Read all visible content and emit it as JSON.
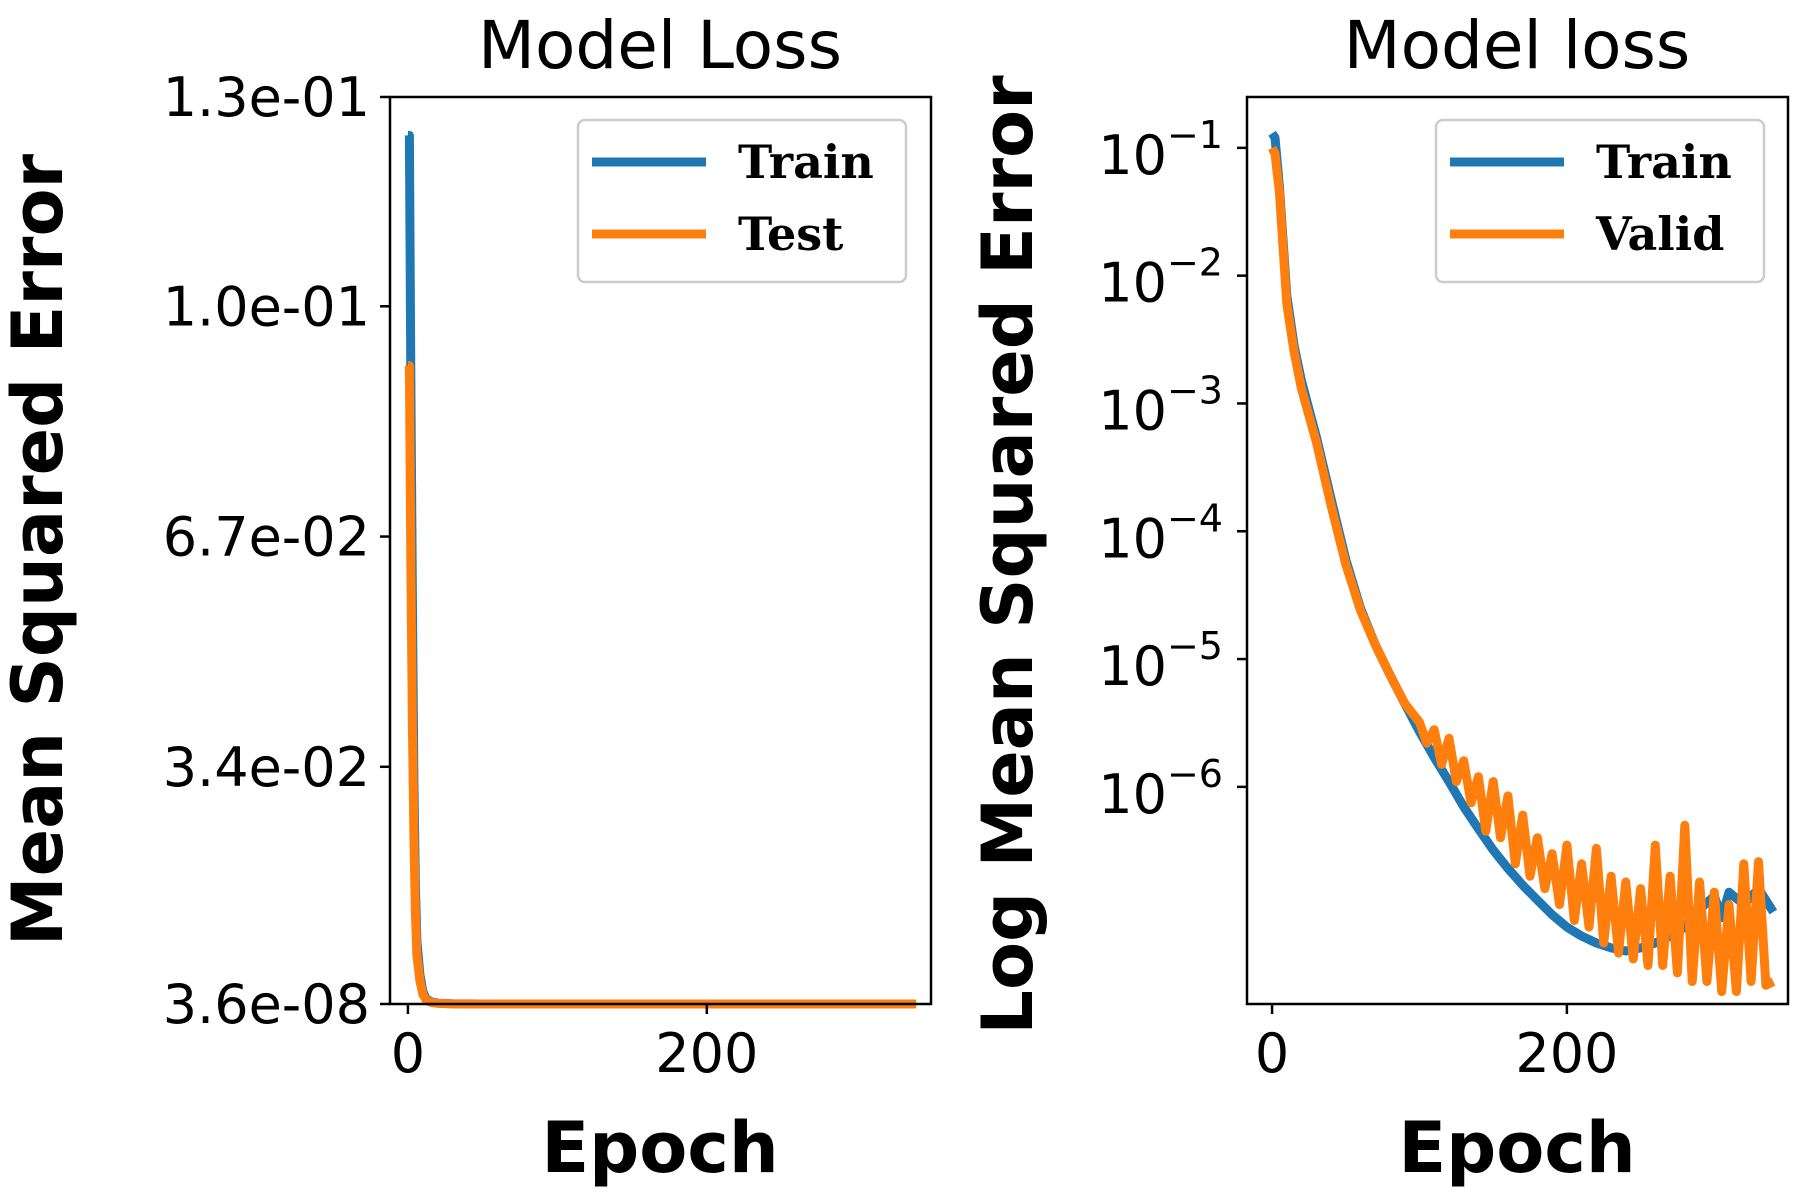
{
  "chart_data": [
    {
      "type": "line",
      "title": "Model Loss",
      "xlabel": "Epoch",
      "ylabel": "Mean Squared Error",
      "xlim": [
        -12,
        350
      ],
      "ylim": [
        3.6e-08,
        0.13
      ],
      "yscale": "linear",
      "xticks": [
        0,
        200
      ],
      "xtick_labels": [
        "0",
        "200"
      ],
      "yticks": [
        3.6e-08,
        0.034,
        0.067,
        0.1,
        0.13
      ],
      "ytick_labels": [
        "3.6e-08",
        "3.4e-02",
        "6.7e-02",
        "1.0e-01",
        "1.3e-01"
      ],
      "legend_position": "top-right",
      "grid": false,
      "series": [
        {
          "name": "Train",
          "color": "#1f77b4",
          "x": [
            0,
            1,
            2,
            3,
            4,
            5,
            6,
            8,
            10,
            12,
            15,
            20,
            30,
            50,
            100,
            200,
            340
          ],
          "y": [
            0.1245,
            0.1245,
            0.088,
            0.058,
            0.032,
            0.017,
            0.009,
            0.0042,
            0.0018,
            0.0008,
            0.00035,
            0.00012,
            3e-05,
            4e-06,
            8e-07,
            2e-07,
            8e-08
          ]
        },
        {
          "name": "Test",
          "color": "#ff7f0e",
          "x": [
            0,
            1,
            2,
            3,
            4,
            5,
            6,
            8,
            10,
            12,
            15,
            20,
            30,
            50,
            100,
            200,
            340
          ],
          "y": [
            0.0915,
            0.0915,
            0.062,
            0.04,
            0.024,
            0.013,
            0.007,
            0.0033,
            0.0014,
            0.0006,
            0.00025,
            9e-05,
            2e-05,
            3e-06,
            8e-07,
            2e-07,
            1e-07
          ]
        }
      ]
    },
    {
      "type": "line",
      "title": "Model loss",
      "xlabel": "Epoch",
      "ylabel": "Log Mean Squared Error",
      "xlim": [
        -17,
        350
      ],
      "ylim": [
        2e-08,
        0.25
      ],
      "yscale": "log",
      "xticks": [
        0,
        200
      ],
      "xtick_labels": [
        "0",
        "200"
      ],
      "yticks": [
        0.1,
        0.01,
        0.001,
        0.0001,
        1e-05,
        1e-06
      ],
      "ytick_base": [
        "10",
        "10",
        "10",
        "10",
        "10",
        "10"
      ],
      "ytick_exp": [
        "−1",
        "−2",
        "−3",
        "−4",
        "−5",
        "−6"
      ],
      "legend_position": "top-right",
      "grid": false,
      "series": [
        {
          "name": "Train",
          "color": "#1f77b4",
          "x": [
            0,
            2,
            5,
            10,
            15,
            20,
            30,
            40,
            50,
            60,
            70,
            80,
            90,
            100,
            110,
            120,
            130,
            140,
            150,
            160,
            170,
            180,
            190,
            200,
            210,
            220,
            230,
            240,
            250,
            260,
            270,
            280,
            290,
            300,
            305,
            310,
            320,
            330,
            340
          ],
          "y": [
            0.13,
            0.12,
            0.05,
            0.007,
            0.0028,
            0.0015,
            0.00055,
            0.00018,
            6e-05,
            2.5e-05,
            1.3e-05,
            7.5e-06,
            4.5e-06,
            2.7e-06,
            1.7e-06,
            1.1e-06,
            7e-07,
            4.7e-07,
            3.2e-07,
            2.3e-07,
            1.7e-07,
            1.3e-07,
            1e-07,
            8e-08,
            6.8e-08,
            6e-08,
            5.5e-08,
            5.2e-08,
            5.5e-08,
            6e-08,
            6.8e-08,
            8e-08,
            1.1e-07,
            1.4e-07,
            9.5e-08,
            1.5e-07,
            1.2e-07,
            1.6e-07,
            1.05e-07
          ]
        },
        {
          "name": "Valid",
          "color": "#ff7f0e",
          "x": [
            0,
            2,
            5,
            10,
            15,
            20,
            30,
            40,
            50,
            60,
            70,
            80,
            90,
            100,
            105,
            110,
            115,
            120,
            125,
            130,
            135,
            140,
            145,
            150,
            155,
            160,
            165,
            170,
            175,
            180,
            185,
            190,
            195,
            200,
            205,
            210,
            215,
            220,
            225,
            230,
            235,
            240,
            245,
            250,
            255,
            260,
            265,
            270,
            275,
            280,
            285,
            290,
            295,
            300,
            305,
            310,
            315,
            320,
            325,
            330,
            335,
            340
          ],
          "y": [
            0.1,
            0.09,
            0.045,
            0.006,
            0.0025,
            0.0013,
            0.0005,
            0.00016,
            5.5e-05,
            2.4e-05,
            1.3e-05,
            7.5e-06,
            4.5e-06,
            3.2e-06,
            2.2e-06,
            2.8e-06,
            1.5e-06,
            2.4e-06,
            1.1e-06,
            1.6e-06,
            7.5e-07,
            1.2e-06,
            4.5e-07,
            1.1e-06,
            4e-07,
            8.5e-07,
            2.5e-07,
            6e-07,
            2e-07,
            4e-07,
            1.6e-07,
            3e-07,
            1.2e-07,
            3.5e-07,
            9e-08,
            2.5e-07,
            8e-08,
            3.3e-07,
            6e-08,
            2e-07,
            5e-08,
            1.8e-07,
            4.5e-08,
            1.6e-07,
            4e-08,
            3.5e-07,
            4e-08,
            2e-07,
            3.5e-08,
            5e-07,
            3e-08,
            1.8e-07,
            3e-08,
            1.5e-07,
            2.5e-08,
            1.2e-07,
            2.5e-08,
            2.5e-07,
            3e-08,
            2.6e-07,
            2.8e-08,
            3e-08
          ]
        }
      ]
    }
  ]
}
